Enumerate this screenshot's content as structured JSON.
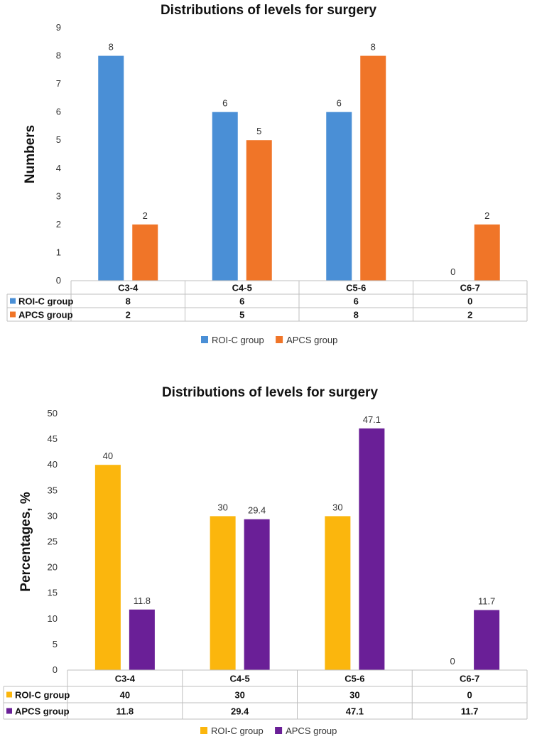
{
  "chart_data": [
    {
      "type": "bar",
      "title": "Distributions of levels for surgery",
      "xlabel": "",
      "ylabel": "Numbers",
      "ylim": [
        0,
        9
      ],
      "yticks": [
        "0",
        "1",
        "2",
        "3",
        "4",
        "5",
        "6",
        "7",
        "8",
        "9"
      ],
      "categories": [
        "C3-4",
        "C4-5",
        "C5-6",
        "C6-7"
      ],
      "series": [
        {
          "name": "ROI-C group",
          "color": "#4a8fd6",
          "values": [
            8,
            6,
            6,
            0
          ],
          "labels": [
            "8",
            "6",
            "6",
            "0"
          ]
        },
        {
          "name": "APCS group",
          "color": "#f07528",
          "values": [
            2,
            5,
            8,
            2
          ],
          "labels": [
            "2",
            "5",
            "8",
            "2"
          ]
        }
      ],
      "legend": "bottom",
      "data_table": true
    },
    {
      "type": "bar",
      "title": "Distributions of levels for surgery",
      "xlabel": "",
      "ylabel": "Percentages, %",
      "ylim": [
        0,
        50
      ],
      "yticks": [
        "0",
        "5",
        "10",
        "15",
        "20",
        "25",
        "30",
        "35",
        "40",
        "45",
        "50"
      ],
      "categories": [
        "C3-4",
        "C4-5",
        "C5-6",
        "C6-7"
      ],
      "series": [
        {
          "name": "ROI-C group",
          "color": "#fbb60d",
          "values": [
            40,
            30,
            30,
            0
          ],
          "labels": [
            "40",
            "30",
            "30",
            "0"
          ]
        },
        {
          "name": "APCS group",
          "color": "#6a1f97",
          "values": [
            11.8,
            29.4,
            47.1,
            11.7
          ],
          "labels": [
            "11.8",
            "29.4",
            "47.1",
            "11.7"
          ]
        }
      ],
      "legend": "bottom",
      "data_table": true
    }
  ]
}
